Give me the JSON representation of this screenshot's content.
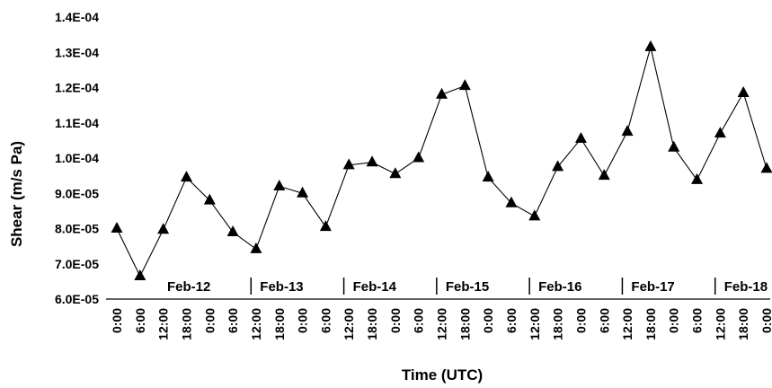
{
  "chart_data": {
    "type": "line",
    "title": "",
    "xlabel": "Time (UTC)",
    "ylabel": "Shear (m/s Pa)",
    "ylim": [
      6e-05,
      0.00014
    ],
    "yticks": [
      "6.0E-05",
      "7.0E-05",
      "8.0E-05",
      "9.0E-05",
      "1.0E-04",
      "1.1E-04",
      "1.2E-04",
      "1.3E-04",
      "1.4E-04"
    ],
    "x_tick_labels": [
      "0:00",
      "6:00",
      "12:00",
      "18:00",
      "0:00",
      "6:00",
      "12:00",
      "18:00",
      "0:00",
      "6:00",
      "12:00",
      "18:00",
      "0:00",
      "6:00",
      "12:00",
      "18:00",
      "0:00",
      "6:00",
      "12:00",
      "18:00",
      "0:00",
      "6:00",
      "12:00",
      "18:00",
      "0:00",
      "6:00",
      "12:00",
      "18:00",
      "0:00"
    ],
    "day_labels": [
      "Feb-12",
      "Feb-13",
      "Feb-14",
      "Feb-15",
      "Feb-16",
      "Feb-17",
      "Feb-18"
    ],
    "grid": false,
    "marker": "triangle",
    "series": [
      {
        "values": [
          8e-05,
          6.65e-05,
          7.97e-05,
          9.45e-05,
          8.8e-05,
          7.9e-05,
          7.42e-05,
          9.2e-05,
          9e-05,
          8.05e-05,
          9.8e-05,
          9.88e-05,
          9.55e-05,
          0.0001,
          0.000118,
          0.0001205,
          9.45e-05,
          8.72e-05,
          8.35e-05,
          9.75e-05,
          0.0001055,
          9.5e-05,
          0.0001075,
          0.0001315,
          0.000103,
          9.38e-05,
          0.000107,
          0.0001185,
          9.7e-05
        ]
      }
    ]
  }
}
